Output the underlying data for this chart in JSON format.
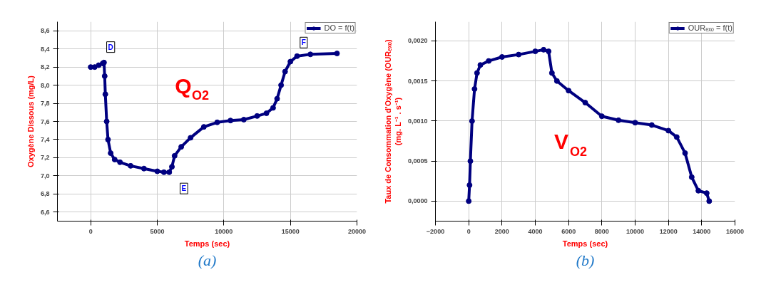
{
  "chart_data": [
    {
      "type": "line",
      "xlabel": "Temps (sec)",
      "ylabel": "Oxygène Dissous (mg/L)",
      "marker": "circle",
      "line_style": "solid",
      "grid": true,
      "legend": "top right",
      "xlim": [
        -2500,
        20000
      ],
      "ylim": [
        6.5,
        8.7
      ],
      "xticks": [
        0,
        5000,
        10000,
        15000,
        20000
      ],
      "yticks": [
        {
          "value": 6.6,
          "label": "6,6"
        },
        {
          "value": 6.8,
          "label": "6,8"
        },
        {
          "value": 7.0,
          "label": "7,0"
        },
        {
          "value": 7.2,
          "label": "7,2"
        },
        {
          "value": 7.4,
          "label": "7,4"
        },
        {
          "value": 7.6,
          "label": "7,6"
        },
        {
          "value": 7.8,
          "label": "7,8"
        },
        {
          "value": 8.0,
          "label": "8,0"
        },
        {
          "value": 8.2,
          "label": "8,2"
        },
        {
          "value": 8.4,
          "label": "8,4"
        },
        {
          "value": 8.6,
          "label": "8,6"
        }
      ],
      "series": [
        {
          "name": "DO = f(t)",
          "color": "#000080",
          "x": [
            0,
            300,
            600,
            900,
            1000,
            1050,
            1100,
            1200,
            1300,
            1500,
            1800,
            2200,
            3000,
            4000,
            5000,
            5500,
            5900,
            6100,
            6300,
            6800,
            7500,
            8500,
            9500,
            10500,
            11500,
            12500,
            13200,
            13700,
            14000,
            14300,
            14600,
            15000,
            15500,
            16500,
            18500
          ],
          "values": [
            8.2,
            8.2,
            8.22,
            8.24,
            8.25,
            8.1,
            7.9,
            7.6,
            7.4,
            7.25,
            7.18,
            7.15,
            7.11,
            7.08,
            7.05,
            7.04,
            7.04,
            7.1,
            7.22,
            7.32,
            7.42,
            7.54,
            7.59,
            7.61,
            7.62,
            7.66,
            7.69,
            7.75,
            7.85,
            8.0,
            8.15,
            8.26,
            8.32,
            8.34,
            8.35
          ]
        }
      ],
      "annotations": [
        {
          "text": "D",
          "x": 1500,
          "y": 8.42
        },
        {
          "text": "E",
          "x": 7000,
          "y": 6.86
        },
        {
          "text": "F",
          "x": 16000,
          "y": 8.47
        },
        "Q$_{O2}$",
        "(a)"
      ]
    },
    {
      "type": "line",
      "xlabel": "Temps (sec)",
      "ylabel": "Taux de Consommation d'Oxygène (OURₑₓₒ)\n(mg. L⁻¹ . s⁻¹)",
      "marker": "circle",
      "line_style": "solid",
      "grid": true,
      "legend": "top right",
      "xlim": [
        -2000,
        16000
      ],
      "ylim": [
        -0.00025,
        0.00224
      ],
      "xticks": [
        -2000,
        0,
        2000,
        4000,
        6000,
        8000,
        10000,
        12000,
        14000,
        16000
      ],
      "yticks": [
        {
          "value": 0,
          "label": "0,0000"
        },
        {
          "value": 0.0005,
          "label": "0,0005"
        },
        {
          "value": 0.001,
          "label": "0,0010"
        },
        {
          "value": 0.0015,
          "label": "0,0015"
        },
        {
          "value": 0.002,
          "label": "0,0020"
        }
      ],
      "series": [
        {
          "name": "OURₑₓₒ = f(t)",
          "color": "#000080",
          "x": [
            0,
            50,
            100,
            200,
            350,
            500,
            700,
            1200,
            2000,
            3000,
            4000,
            4500,
            4800,
            5000,
            5300,
            6000,
            7000,
            8000,
            9000,
            10000,
            11000,
            12000,
            12500,
            13000,
            13400,
            13800,
            14300,
            14450
          ],
          "values": [
            0.0,
            0.0002,
            0.0005,
            0.001,
            0.0014,
            0.0016,
            0.0017,
            0.00175,
            0.0018,
            0.00183,
            0.00187,
            0.00189,
            0.00187,
            0.0016,
            0.0015,
            0.00138,
            0.00123,
            0.00106,
            0.00101,
            0.00098,
            0.00095,
            0.00088,
            0.0008,
            0.0006,
            0.0003,
            0.00013,
            0.0001,
            0.0
          ]
        }
      ],
      "annotations": [
        "V$_{O2}$",
        "(b)"
      ]
    }
  ]
}
